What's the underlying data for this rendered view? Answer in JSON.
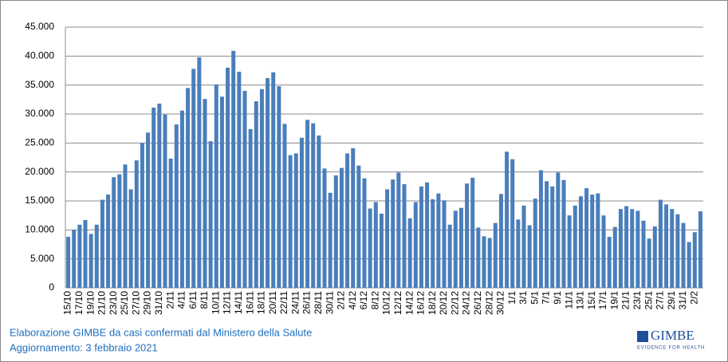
{
  "chart_data": {
    "type": "bar",
    "color": "#4a7ebb",
    "grid": true,
    "categories": [
      "15/10",
      null,
      "17/10",
      null,
      "19/10",
      null,
      "21/10",
      null,
      "23/10",
      null,
      "25/10",
      null,
      "27/10",
      null,
      "29/10",
      null,
      "31/10",
      null,
      "2/11",
      null,
      "4/11",
      null,
      "6/11",
      null,
      "8/11",
      null,
      "10/11",
      null,
      "12/11",
      null,
      "14/11",
      null,
      "16/11",
      null,
      "18/11",
      null,
      "20/11",
      null,
      "22/11",
      null,
      "24/11",
      null,
      "26/11",
      null,
      "28/11",
      null,
      "30/11",
      null,
      "2/12",
      null,
      "4/12",
      null,
      "6/12",
      null,
      "8/12",
      null,
      "10/12",
      null,
      "12/12",
      null,
      "14/12",
      null,
      "16/12",
      null,
      "18/12",
      null,
      "20/12",
      null,
      "22/12",
      null,
      "24/12",
      null,
      "26/12",
      null,
      "28/12",
      null,
      "30/12",
      null,
      "1/1",
      null,
      "3/1",
      null,
      "5/1",
      null,
      "7/1",
      null,
      "9/1",
      null,
      "11/1",
      null,
      "13/1",
      null,
      "15/1",
      null,
      "17/1",
      null,
      "19/1",
      null,
      "21/1",
      null,
      "23/1",
      null,
      "25/1",
      null,
      "27/1",
      null,
      "29/1",
      null,
      "31/1",
      null,
      "2/2",
      null
    ],
    "values": [
      8800,
      10000,
      10900,
      11700,
      9300,
      10900,
      15200,
      16100,
      19100,
      19600,
      21300,
      17000,
      22000,
      25000,
      26800,
      31100,
      31800,
      29900,
      22300,
      28200,
      30600,
      34500,
      37800,
      39800,
      32600,
      25300,
      35100,
      33000,
      38000,
      40900,
      37300,
      34000,
      27400,
      32200,
      34300,
      36200,
      37200,
      34800,
      28300,
      22900,
      23200,
      25900,
      29000,
      28400,
      26300,
      20600,
      16400,
      19400,
      20700,
      23200,
      24100,
      21100,
      18900,
      13700,
      14800,
      12800,
      17000,
      18700,
      19900,
      17900,
      12000,
      14800,
      17500,
      18200,
      15300,
      16300,
      15100,
      10900,
      13300,
      13800,
      18000,
      19000,
      10400,
      8900,
      8600,
      11200,
      16200,
      23500,
      22200,
      11800,
      14200,
      10800,
      15400,
      20300,
      18400,
      17500,
      19900,
      18600,
      12500,
      14200,
      15800,
      17200,
      16100,
      16300,
      12500,
      8800,
      10500,
      13600,
      14100,
      13600,
      13300,
      11600,
      8500,
      10600,
      15200,
      14400,
      13600,
      12700,
      11200,
      7900,
      9600,
      13200
    ],
    "ylim": [
      0,
      45000
    ],
    "yticks": [
      0,
      {
        "value": 5000,
        "label": "5.000"
      },
      {
        "value": 10000,
        "label": "10.000"
      },
      {
        "value": 15000,
        "label": "15.000"
      },
      {
        "value": 20000,
        "label": "20.000"
      },
      {
        "value": 25000,
        "label": "25.000"
      },
      {
        "value": 30000,
        "label": "30.000"
      },
      {
        "value": 35000,
        "label": "35.000"
      },
      {
        "value": 40000,
        "label": "40.000"
      },
      {
        "value": 45000,
        "label": "45.000"
      }
    ]
  },
  "footer": {
    "source": "Elaborazione GIMBE da casi confermati dal Ministero della Salute",
    "update": "Aggiornamento: 3 febbraio 2021"
  },
  "logo": {
    "name": "GIMBE",
    "tagline": "EVIDENCE FOR HEALTH"
  }
}
